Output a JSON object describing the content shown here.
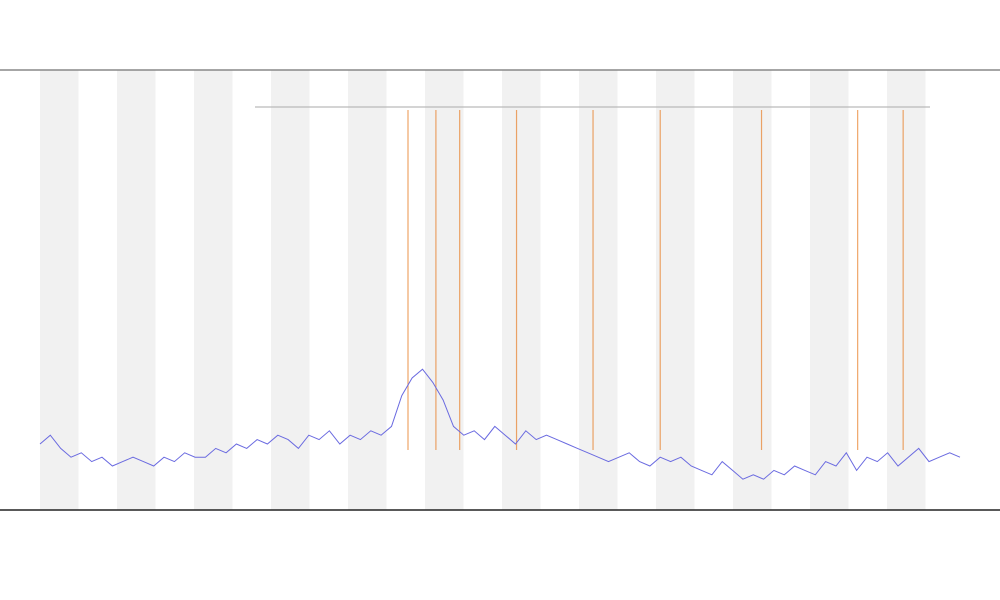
{
  "chart_data": {
    "type": "line",
    "x": [
      0,
      1,
      2,
      3,
      4,
      5,
      6,
      7,
      8,
      9,
      10,
      11,
      12,
      13,
      14,
      15,
      16,
      17,
      18,
      19,
      20,
      21,
      22,
      23,
      24,
      25,
      26,
      27,
      28,
      29,
      30,
      31,
      32,
      33,
      34,
      35,
      36,
      37,
      38,
      39,
      40,
      41,
      42,
      43,
      44,
      45,
      46,
      47,
      48,
      49,
      50,
      51,
      52,
      53,
      54,
      55,
      56,
      57,
      58,
      59,
      60,
      61,
      62,
      63,
      64,
      65,
      66,
      67,
      68,
      69,
      70,
      71,
      72,
      73,
      74,
      75,
      76,
      77,
      78,
      79,
      80,
      81,
      82,
      83,
      84,
      85,
      86,
      87,
      88,
      89
    ],
    "values": [
      15,
      17,
      14,
      12,
      13,
      11,
      12,
      10,
      11,
      12,
      11,
      10,
      12,
      11,
      13,
      12,
      12,
      14,
      13,
      15,
      14,
      16,
      15,
      17,
      16,
      14,
      17,
      16,
      18,
      15,
      17,
      16,
      18,
      17,
      19,
      26,
      30,
      32,
      29,
      25,
      19,
      17,
      18,
      16,
      19,
      17,
      15,
      18,
      16,
      17,
      16,
      15,
      14,
      13,
      12,
      11,
      12,
      13,
      11,
      10,
      12,
      11,
      12,
      10,
      9,
      8,
      11,
      9,
      7,
      8,
      7,
      9,
      8,
      10,
      9,
      8,
      11,
      10,
      13,
      9,
      12,
      11,
      13,
      10,
      12,
      14,
      11,
      12,
      13,
      12
    ],
    "color": "#6a6ae0",
    "events": [
      35.6,
      38.3,
      40.6,
      46.1,
      53.5,
      60,
      69.8,
      79.1,
      83.5
    ],
    "event_color": "#e8802a",
    "xlim": [
      0,
      89
    ],
    "ylim": [
      0,
      100
    ]
  }
}
